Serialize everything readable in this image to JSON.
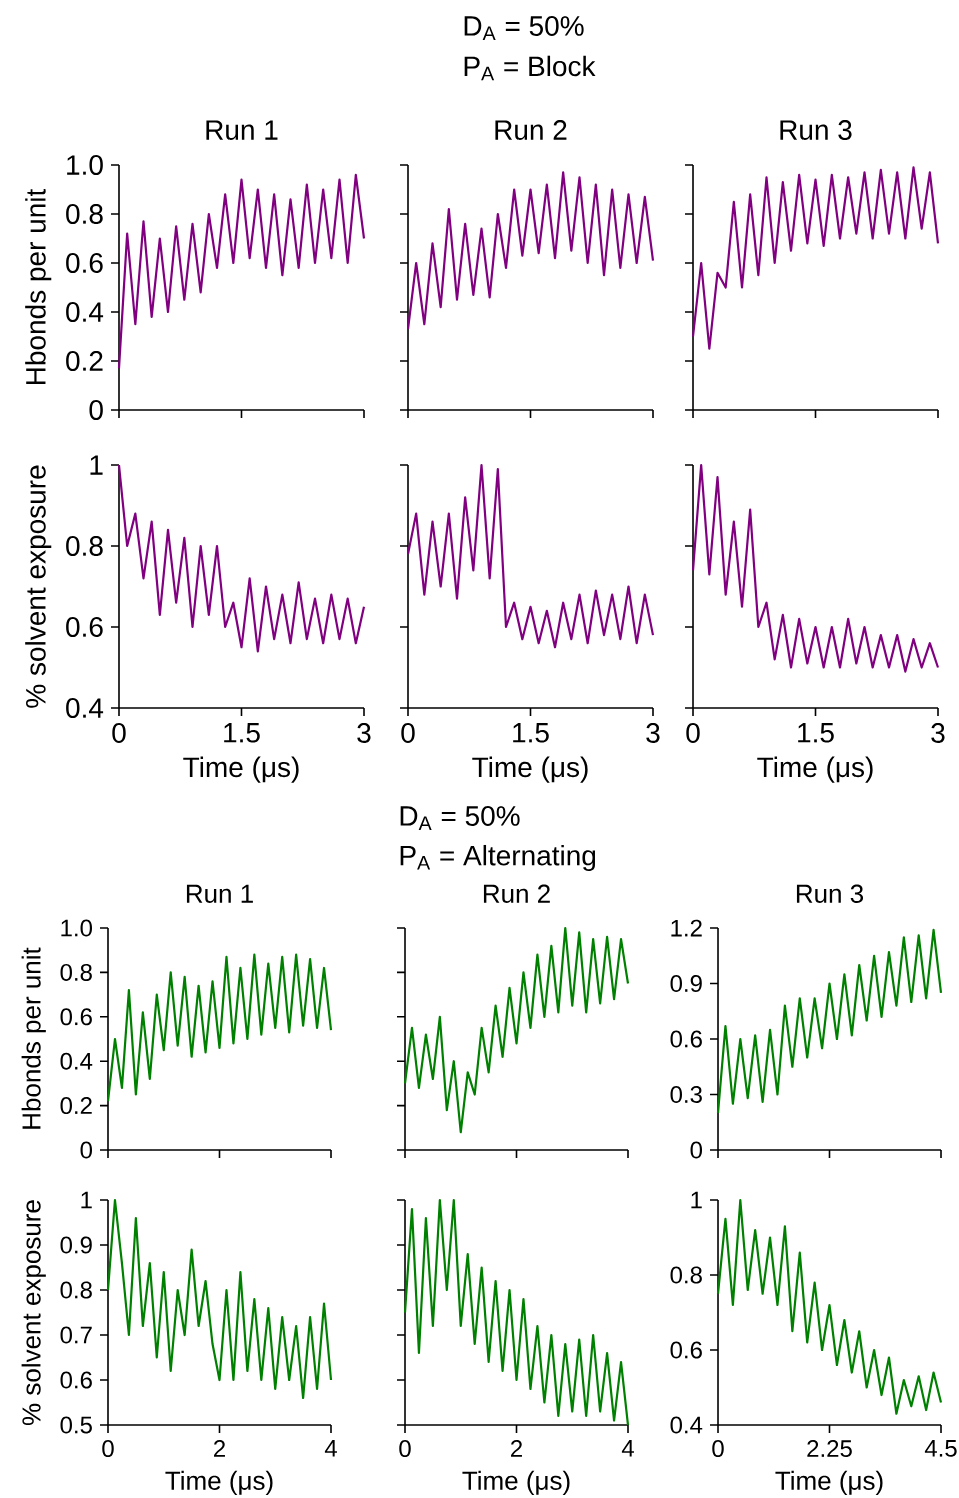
{
  "chart_data": [
    {
      "type": "line",
      "title": "Run 1",
      "ylabel": "Hbonds per unit",
      "annotations": [
        "D$_{A}$ = 50%",
        "P$_{A}$ = Block"
      ],
      "color": "#800080",
      "xlim": [
        0,
        3
      ],
      "ylim": [
        0,
        1
      ],
      "xticks": [
        0,
        1.5,
        3
      ],
      "yticks": [
        0,
        0.2,
        0.4,
        0.6,
        0.8,
        {
          "value": 1,
          "label": "1.0"
        }
      ],
      "tick_labels": "y",
      "x": [
        0,
        0.1,
        0.2,
        0.3,
        0.4,
        0.5,
        0.6,
        0.7,
        0.8,
        0.9,
        1,
        1.1,
        1.2,
        1.3,
        1.4,
        1.5,
        1.6,
        1.7,
        1.8,
        1.9,
        2,
        2.1,
        2.2,
        2.3,
        2.4,
        2.5,
        2.6,
        2.7,
        2.8,
        2.9,
        3
      ],
      "values": [
        0.17,
        0.72,
        0.35,
        0.77,
        0.38,
        0.7,
        0.4,
        0.75,
        0.45,
        0.76,
        0.48,
        0.8,
        0.58,
        0.88,
        0.6,
        0.94,
        0.62,
        0.9,
        0.58,
        0.88,
        0.55,
        0.86,
        0.58,
        0.92,
        0.6,
        0.9,
        0.62,
        0.94,
        0.6,
        0.96,
        0.7
      ]
    },
    {
      "type": "line",
      "title": "Run 2",
      "color": "#800080",
      "xlim": [
        0,
        3
      ],
      "ylim": [
        0,
        1
      ],
      "xticks": [
        0,
        1.5,
        3
      ],
      "yticks": [
        0,
        0.2,
        0.4,
        0.6,
        0.8,
        1
      ],
      "tick_labels": false,
      "x": [
        0,
        0.1,
        0.2,
        0.3,
        0.4,
        0.5,
        0.6,
        0.7,
        0.8,
        0.9,
        1,
        1.1,
        1.2,
        1.3,
        1.4,
        1.5,
        1.6,
        1.7,
        1.8,
        1.9,
        2,
        2.1,
        2.2,
        2.3,
        2.4,
        2.5,
        2.6,
        2.7,
        2.8,
        2.9,
        3
      ],
      "values": [
        0.33,
        0.6,
        0.35,
        0.68,
        0.42,
        0.82,
        0.45,
        0.76,
        0.47,
        0.74,
        0.46,
        0.8,
        0.58,
        0.9,
        0.63,
        0.9,
        0.64,
        0.92,
        0.62,
        0.97,
        0.65,
        0.95,
        0.6,
        0.92,
        0.55,
        0.9,
        0.58,
        0.88,
        0.6,
        0.87,
        0.61
      ]
    },
    {
      "type": "line",
      "title": "Run 3",
      "color": "#800080",
      "xlim": [
        0,
        3
      ],
      "ylim": [
        0,
        1
      ],
      "xticks": [
        0,
        1.5,
        3
      ],
      "yticks": [
        0,
        0.2,
        0.4,
        0.6,
        0.8,
        1
      ],
      "tick_labels": false,
      "x": [
        0,
        0.1,
        0.2,
        0.3,
        0.4,
        0.5,
        0.6,
        0.7,
        0.8,
        0.9,
        1,
        1.1,
        1.2,
        1.3,
        1.4,
        1.5,
        1.6,
        1.7,
        1.8,
        1.9,
        2,
        2.1,
        2.2,
        2.3,
        2.4,
        2.5,
        2.6,
        2.7,
        2.8,
        2.9,
        3
      ],
      "values": [
        0.3,
        0.6,
        0.25,
        0.56,
        0.5,
        0.85,
        0.5,
        0.88,
        0.55,
        0.95,
        0.6,
        0.93,
        0.65,
        0.96,
        0.68,
        0.94,
        0.67,
        0.96,
        0.7,
        0.95,
        0.72,
        0.97,
        0.7,
        0.98,
        0.72,
        0.97,
        0.7,
        0.99,
        0.74,
        0.97,
        0.68
      ]
    },
    {
      "type": "line",
      "xlabel": "Time (μs)",
      "ylabel": "% solvent exposure",
      "color": "#800080",
      "xlim": [
        0,
        3
      ],
      "ylim": [
        0.4,
        1
      ],
      "xticks": [
        0,
        1.5,
        3
      ],
      "yticks": [
        0.4,
        0.6,
        0.8,
        1
      ],
      "x": [
        0,
        0.1,
        0.2,
        0.3,
        0.4,
        0.5,
        0.6,
        0.7,
        0.8,
        0.9,
        1,
        1.1,
        1.2,
        1.3,
        1.4,
        1.5,
        1.6,
        1.7,
        1.8,
        1.9,
        2,
        2.1,
        2.2,
        2.3,
        2.4,
        2.5,
        2.6,
        2.7,
        2.8,
        2.9,
        3
      ],
      "values": [
        1.0,
        0.8,
        0.88,
        0.72,
        0.86,
        0.63,
        0.84,
        0.66,
        0.82,
        0.6,
        0.8,
        0.63,
        0.8,
        0.6,
        0.66,
        0.55,
        0.72,
        0.54,
        0.7,
        0.57,
        0.68,
        0.56,
        0.71,
        0.57,
        0.67,
        0.56,
        0.68,
        0.57,
        0.67,
        0.56,
        0.65
      ]
    },
    {
      "type": "line",
      "xlabel": "Time (μs)",
      "color": "#800080",
      "xlim": [
        0,
        3
      ],
      "ylim": [
        0.4,
        1
      ],
      "xticks": [
        0,
        1.5,
        3
      ],
      "yticks": [
        0.4,
        0.6,
        0.8,
        1
      ],
      "tick_labels": "x",
      "x": [
        0,
        0.1,
        0.2,
        0.3,
        0.4,
        0.5,
        0.6,
        0.7,
        0.8,
        0.9,
        1,
        1.1,
        1.2,
        1.3,
        1.4,
        1.5,
        1.6,
        1.7,
        1.8,
        1.9,
        2,
        2.1,
        2.2,
        2.3,
        2.4,
        2.5,
        2.6,
        2.7,
        2.8,
        2.9,
        3
      ],
      "values": [
        0.78,
        0.88,
        0.68,
        0.86,
        0.7,
        0.88,
        0.67,
        0.92,
        0.74,
        1.0,
        0.72,
        0.99,
        0.6,
        0.66,
        0.57,
        0.65,
        0.56,
        0.64,
        0.55,
        0.66,
        0.57,
        0.68,
        0.56,
        0.69,
        0.58,
        0.68,
        0.57,
        0.7,
        0.56,
        0.68,
        0.58
      ]
    },
    {
      "type": "line",
      "xlabel": "Time (μs)",
      "color": "#800080",
      "xlim": [
        0,
        3
      ],
      "ylim": [
        0.4,
        1
      ],
      "xticks": [
        0,
        1.5,
        3
      ],
      "yticks": [
        0.4,
        0.6,
        0.8,
        1
      ],
      "tick_labels": "x",
      "x": [
        0,
        0.1,
        0.2,
        0.3,
        0.4,
        0.5,
        0.6,
        0.7,
        0.8,
        0.9,
        1,
        1.1,
        1.2,
        1.3,
        1.4,
        1.5,
        1.6,
        1.7,
        1.8,
        1.9,
        2,
        2.1,
        2.2,
        2.3,
        2.4,
        2.5,
        2.6,
        2.7,
        2.8,
        2.9,
        3
      ],
      "values": [
        0.74,
        1.0,
        0.73,
        0.97,
        0.68,
        0.86,
        0.65,
        0.89,
        0.6,
        0.66,
        0.52,
        0.63,
        0.5,
        0.62,
        0.51,
        0.6,
        0.5,
        0.6,
        0.5,
        0.62,
        0.51,
        0.6,
        0.5,
        0.58,
        0.5,
        0.58,
        0.49,
        0.57,
        0.5,
        0.56,
        0.5
      ]
    },
    {
      "type": "line",
      "title": "Run 1",
      "ylabel": "Hbonds per unit",
      "annotations": [
        "D$_{A}$ = 50%",
        "P$_{A}$ = Alternating"
      ],
      "color": "#008000",
      "xlim": [
        0,
        4
      ],
      "ylim": [
        0,
        1
      ],
      "xticks": [
        0,
        2,
        4
      ],
      "yticks": [
        0,
        0.2,
        0.4,
        0.6,
        0.8,
        {
          "value": 1,
          "label": "1.0"
        }
      ],
      "tick_labels": "y",
      "x": [
        0,
        0.125,
        0.25,
        0.375,
        0.5,
        0.625,
        0.75,
        0.875,
        1,
        1.125,
        1.25,
        1.375,
        1.5,
        1.625,
        1.75,
        1.875,
        2,
        2.125,
        2.25,
        2.375,
        2.5,
        2.625,
        2.75,
        2.875,
        3,
        3.125,
        3.25,
        3.375,
        3.5,
        3.625,
        3.75,
        3.875,
        4
      ],
      "values": [
        0.22,
        0.5,
        0.28,
        0.72,
        0.25,
        0.62,
        0.32,
        0.7,
        0.45,
        0.8,
        0.47,
        0.78,
        0.42,
        0.74,
        0.44,
        0.76,
        0.46,
        0.87,
        0.48,
        0.82,
        0.5,
        0.88,
        0.52,
        0.84,
        0.55,
        0.87,
        0.53,
        0.88,
        0.56,
        0.86,
        0.55,
        0.82,
        0.54
      ]
    },
    {
      "type": "line",
      "title": "Run 2",
      "color": "#008000",
      "xlim": [
        0,
        4
      ],
      "ylim": [
        0,
        1
      ],
      "xticks": [
        0,
        2,
        4
      ],
      "yticks": [
        0,
        0.2,
        0.4,
        0.6,
        0.8,
        1
      ],
      "tick_labels": false,
      "x": [
        0,
        0.125,
        0.25,
        0.375,
        0.5,
        0.625,
        0.75,
        0.875,
        1,
        1.125,
        1.25,
        1.375,
        1.5,
        1.625,
        1.75,
        1.875,
        2,
        2.125,
        2.25,
        2.375,
        2.5,
        2.625,
        2.75,
        2.875,
        3,
        3.125,
        3.25,
        3.375,
        3.5,
        3.625,
        3.75,
        3.875,
        4
      ],
      "values": [
        0.3,
        0.55,
        0.28,
        0.52,
        0.32,
        0.6,
        0.18,
        0.4,
        0.08,
        0.35,
        0.25,
        0.55,
        0.35,
        0.65,
        0.42,
        0.73,
        0.48,
        0.8,
        0.55,
        0.88,
        0.6,
        0.92,
        0.62,
        1.0,
        0.65,
        0.98,
        0.62,
        0.95,
        0.66,
        0.96,
        0.68,
        0.95,
        0.75
      ]
    },
    {
      "type": "line",
      "title": "Run 3",
      "color": "#008000",
      "xlim": [
        0,
        4.5
      ],
      "ylim": [
        0,
        1.2
      ],
      "xticks": [
        0,
        2.25,
        4.5
      ],
      "yticks": [
        0,
        0.3,
        0.6,
        0.9,
        1.2
      ],
      "tick_labels": "y",
      "x": [
        0,
        0.15,
        0.3,
        0.45,
        0.6,
        0.75,
        0.9,
        1.05,
        1.2,
        1.35,
        1.5,
        1.65,
        1.8,
        1.95,
        2.1,
        2.25,
        2.4,
        2.55,
        2.7,
        2.85,
        3,
        3.15,
        3.3,
        3.45,
        3.6,
        3.75,
        3.9,
        4.05,
        4.2,
        4.35,
        4.5
      ],
      "values": [
        0.2,
        0.67,
        0.25,
        0.6,
        0.28,
        0.62,
        0.26,
        0.65,
        0.3,
        0.78,
        0.45,
        0.82,
        0.5,
        0.82,
        0.55,
        0.9,
        0.6,
        0.95,
        0.62,
        1.0,
        0.7,
        1.05,
        0.72,
        1.07,
        0.78,
        1.15,
        0.8,
        1.16,
        0.82,
        1.19,
        0.85
      ]
    },
    {
      "type": "line",
      "xlabel": "Time (μs)",
      "ylabel": "% solvent exposure",
      "color": "#008000",
      "xlim": [
        0,
        4
      ],
      "ylim": [
        0.5,
        1
      ],
      "xticks": [
        0,
        2,
        4
      ],
      "yticks": [
        0.5,
        0.6,
        0.7,
        0.8,
        0.9,
        1
      ],
      "x": [
        0,
        0.125,
        0.25,
        0.375,
        0.5,
        0.625,
        0.75,
        0.875,
        1,
        1.125,
        1.25,
        1.375,
        1.5,
        1.625,
        1.75,
        1.875,
        2,
        2.125,
        2.25,
        2.375,
        2.5,
        2.625,
        2.75,
        2.875,
        3,
        3.125,
        3.25,
        3.375,
        3.5,
        3.625,
        3.75,
        3.875,
        4
      ],
      "values": [
        0.8,
        1.0,
        0.86,
        0.7,
        0.96,
        0.72,
        0.86,
        0.65,
        0.84,
        0.62,
        0.8,
        0.7,
        0.89,
        0.72,
        0.82,
        0.68,
        0.6,
        0.8,
        0.6,
        0.84,
        0.62,
        0.78,
        0.6,
        0.76,
        0.58,
        0.74,
        0.6,
        0.72,
        0.56,
        0.74,
        0.58,
        0.77,
        0.6
      ]
    },
    {
      "type": "line",
      "xlabel": "Time (μs)",
      "color": "#008000",
      "xlim": [
        0,
        4
      ],
      "ylim": [
        0.5,
        1
      ],
      "xticks": [
        0,
        2,
        4
      ],
      "yticks": [
        0.5,
        0.6,
        0.7,
        0.8,
        0.9,
        1
      ],
      "tick_labels": "x",
      "x": [
        0,
        0.125,
        0.25,
        0.375,
        0.5,
        0.625,
        0.75,
        0.875,
        1,
        1.125,
        1.25,
        1.375,
        1.5,
        1.625,
        1.75,
        1.875,
        2,
        2.125,
        2.25,
        2.375,
        2.5,
        2.625,
        2.75,
        2.875,
        3,
        3.125,
        3.25,
        3.375,
        3.5,
        3.625,
        3.75,
        3.875,
        4
      ],
      "values": [
        0.75,
        0.98,
        0.66,
        0.96,
        0.72,
        1.0,
        0.8,
        1.0,
        0.72,
        0.88,
        0.68,
        0.85,
        0.64,
        0.82,
        0.62,
        0.8,
        0.6,
        0.78,
        0.58,
        0.72,
        0.55,
        0.7,
        0.52,
        0.68,
        0.53,
        0.69,
        0.52,
        0.7,
        0.53,
        0.66,
        0.51,
        0.64,
        0.5
      ]
    },
    {
      "type": "line",
      "xlabel": "Time (μs)",
      "color": "#008000",
      "xlim": [
        0,
        4.5
      ],
      "ylim": [
        0.4,
        1
      ],
      "xticks": [
        0,
        2.25,
        4.5
      ],
      "yticks": [
        0.4,
        0.6,
        0.8,
        1
      ],
      "x": [
        0,
        0.15,
        0.3,
        0.45,
        0.6,
        0.75,
        0.9,
        1.05,
        1.2,
        1.35,
        1.5,
        1.65,
        1.8,
        1.95,
        2.1,
        2.25,
        2.4,
        2.55,
        2.7,
        2.85,
        3,
        3.15,
        3.3,
        3.45,
        3.6,
        3.75,
        3.9,
        4.05,
        4.2,
        4.35,
        4.5
      ],
      "values": [
        0.75,
        0.95,
        0.72,
        1.0,
        0.76,
        0.92,
        0.75,
        0.9,
        0.72,
        0.93,
        0.65,
        0.86,
        0.62,
        0.78,
        0.6,
        0.72,
        0.56,
        0.68,
        0.54,
        0.65,
        0.5,
        0.6,
        0.48,
        0.58,
        0.43,
        0.52,
        0.45,
        0.53,
        0.44,
        0.54,
        0.46
      ]
    }
  ]
}
